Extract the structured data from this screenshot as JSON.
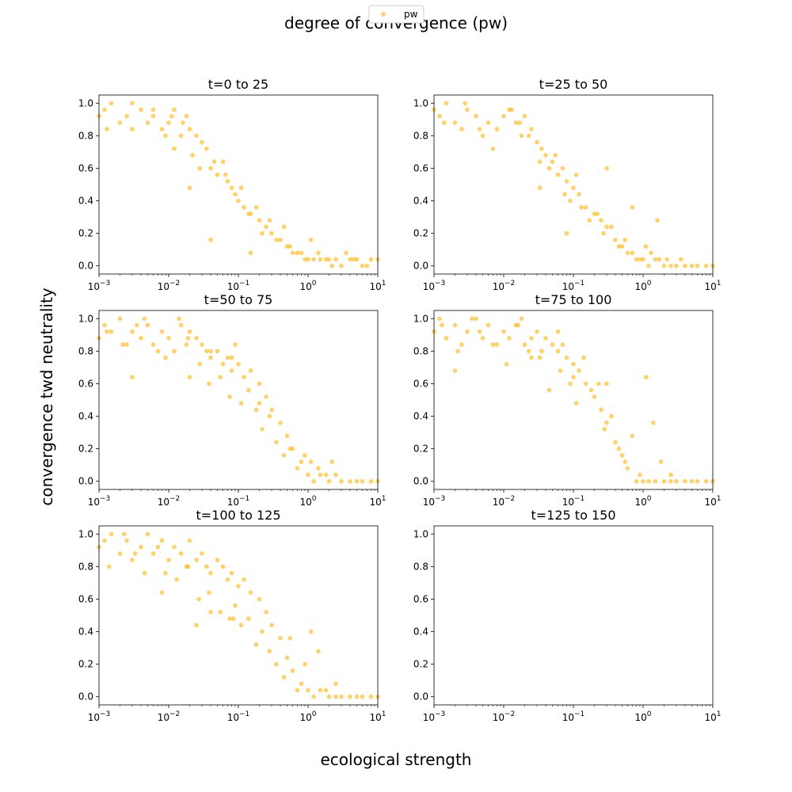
{
  "figure": {
    "title": "degree of convergence (pw)",
    "xlabel": "ecological strength",
    "ylabel": "convergence twd neutrality",
    "legend": {
      "label": "pw",
      "position": "top-center"
    },
    "series_color": "#FFB300"
  },
  "chart_data": [
    {
      "type": "scatter",
      "title": "t=0 to 25",
      "x_scale": "log",
      "xlim": [
        0.001,
        10
      ],
      "ylim": [
        -0.05,
        1.05
      ],
      "x_ticks": [
        {
          "base": "10",
          "exp": "−3"
        },
        {
          "base": "10",
          "exp": "−2"
        },
        {
          "base": "10",
          "exp": "−1"
        },
        {
          "base": "10",
          "exp": "0"
        },
        {
          "base": "10",
          "exp": "1"
        }
      ],
      "y_ticks": [
        "0.0",
        "0.2",
        "0.4",
        "0.6",
        "0.8",
        "1.0"
      ],
      "series": [
        {
          "name": "pw",
          "x": [
            0.001,
            0.0012,
            0.0015,
            0.002,
            0.0025,
            0.003,
            0.004,
            0.005,
            0.006,
            0.008,
            0.01,
            0.012,
            0.015,
            0.018,
            0.02,
            0.025,
            0.03,
            0.035,
            0.04,
            0.05,
            0.06,
            0.07,
            0.08,
            0.1,
            0.12,
            0.15,
            0.2,
            0.25,
            0.3,
            0.4,
            0.5,
            0.6,
            0.8,
            1.0,
            1.2,
            1.5,
            2.0,
            2.5,
            3.0,
            4.0,
            5.0,
            6.0,
            8.0,
            10.0,
            0.0013,
            0.003,
            0.006,
            0.009,
            0.011,
            0.016,
            0.022,
            0.028,
            0.045,
            0.065,
            0.09,
            0.11,
            0.14,
            0.18,
            0.22,
            0.28,
            0.35,
            0.45,
            0.55,
            0.7,
            0.9,
            1.1,
            1.4,
            1.8,
            2.2,
            3.5,
            4.5,
            7.0,
            0.04,
            0.15,
            0.02,
            0.012
          ],
          "y": [
            0.92,
            0.96,
            1.0,
            0.88,
            0.92,
            0.84,
            0.96,
            0.88,
            0.92,
            0.84,
            0.88,
            0.96,
            0.8,
            0.92,
            0.84,
            0.8,
            0.76,
            0.72,
            0.6,
            0.56,
            0.64,
            0.52,
            0.48,
            0.4,
            0.36,
            0.32,
            0.28,
            0.24,
            0.2,
            0.16,
            0.12,
            0.08,
            0.08,
            0.04,
            0.04,
            0.04,
            0.04,
            0.04,
            0.0,
            0.04,
            0.04,
            0.0,
            0.04,
            0.04,
            0.84,
            1.0,
            0.96,
            0.8,
            0.92,
            0.88,
            0.68,
            0.6,
            0.64,
            0.56,
            0.44,
            0.48,
            0.32,
            0.36,
            0.2,
            0.28,
            0.16,
            0.24,
            0.12,
            0.08,
            0.04,
            0.16,
            0.08,
            0.04,
            0.0,
            0.08,
            0.04,
            0.0,
            0.16,
            0.08,
            0.48,
            0.72
          ]
        }
      ]
    },
    {
      "type": "scatter",
      "title": "t=25 to 50",
      "x_scale": "log",
      "xlim": [
        0.001,
        10
      ],
      "ylim": [
        -0.05,
        1.05
      ],
      "x_ticks": [
        {
          "base": "10",
          "exp": "−3"
        },
        {
          "base": "10",
          "exp": "−2"
        },
        {
          "base": "10",
          "exp": "−1"
        },
        {
          "base": "10",
          "exp": "0"
        },
        {
          "base": "10",
          "exp": "1"
        }
      ],
      "y_ticks": [
        "0.0",
        "0.2",
        "0.4",
        "0.6",
        "0.8",
        "1.0"
      ],
      "series": [
        {
          "name": "pw",
          "x": [
            0.001,
            0.0012,
            0.0015,
            0.002,
            0.0025,
            0.003,
            0.004,
            0.005,
            0.006,
            0.008,
            0.01,
            0.012,
            0.015,
            0.018,
            0.02,
            0.025,
            0.03,
            0.035,
            0.04,
            0.05,
            0.06,
            0.07,
            0.08,
            0.1,
            0.12,
            0.15,
            0.2,
            0.25,
            0.3,
            0.4,
            0.5,
            0.6,
            0.8,
            1.0,
            1.2,
            1.5,
            2.0,
            2.5,
            3.0,
            4.0,
            5.0,
            6.0,
            8.0,
            10.0,
            0.0014,
            0.0028,
            0.0045,
            0.007,
            0.013,
            0.017,
            0.023,
            0.033,
            0.045,
            0.055,
            0.075,
            0.09,
            0.11,
            0.13,
            0.17,
            0.22,
            0.27,
            0.35,
            0.45,
            0.55,
            0.7,
            0.9,
            1.1,
            1.3,
            1.7,
            2.2,
            3.5,
            0.033,
            0.08,
            0.3,
            0.7,
            1.6
          ],
          "y": [
            0.96,
            0.92,
            1.0,
            0.88,
            0.84,
            0.96,
            0.92,
            0.8,
            0.88,
            0.84,
            0.92,
            0.96,
            0.88,
            0.8,
            0.92,
            0.84,
            0.76,
            0.72,
            0.68,
            0.64,
            0.56,
            0.6,
            0.52,
            0.48,
            0.44,
            0.36,
            0.32,
            0.28,
            0.24,
            0.16,
            0.12,
            0.08,
            0.04,
            0.04,
            0.0,
            0.04,
            0.0,
            0.0,
            0.0,
            0.0,
            0.0,
            0.0,
            0.0,
            0.0,
            0.88,
            1.0,
            0.84,
            0.72,
            0.96,
            0.88,
            0.8,
            0.64,
            0.6,
            0.68,
            0.44,
            0.4,
            0.56,
            0.36,
            0.28,
            0.32,
            0.2,
            0.24,
            0.12,
            0.16,
            0.08,
            0.04,
            0.12,
            0.08,
            0.04,
            0.04,
            0.04,
            0.48,
            0.2,
            0.6,
            0.36,
            0.28
          ]
        }
      ]
    },
    {
      "type": "scatter",
      "title": "t=50 to 75",
      "x_scale": "log",
      "xlim": [
        0.001,
        10
      ],
      "ylim": [
        -0.05,
        1.05
      ],
      "x_ticks": [
        {
          "base": "10",
          "exp": "−3"
        },
        {
          "base": "10",
          "exp": "−2"
        },
        {
          "base": "10",
          "exp": "−1"
        },
        {
          "base": "10",
          "exp": "0"
        },
        {
          "base": "10",
          "exp": "1"
        }
      ],
      "y_ticks": [
        "0.0",
        "0.2",
        "0.4",
        "0.6",
        "0.8",
        "1.0"
      ],
      "series": [
        {
          "name": "pw",
          "x": [
            0.001,
            0.0012,
            0.0015,
            0.002,
            0.0025,
            0.003,
            0.004,
            0.005,
            0.006,
            0.008,
            0.01,
            0.012,
            0.015,
            0.018,
            0.02,
            0.025,
            0.03,
            0.035,
            0.04,
            0.05,
            0.06,
            0.07,
            0.08,
            0.1,
            0.12,
            0.15,
            0.2,
            0.25,
            0.3,
            0.4,
            0.5,
            0.6,
            0.8,
            1.0,
            1.2,
            1.5,
            2.0,
            2.5,
            3.0,
            4.0,
            5.0,
            6.0,
            8.0,
            10.0,
            0.0013,
            0.0022,
            0.0035,
            0.0045,
            0.007,
            0.009,
            0.014,
            0.019,
            0.028,
            0.038,
            0.055,
            0.075,
            0.09,
            0.11,
            0.14,
            0.18,
            0.22,
            0.28,
            0.35,
            0.45,
            0.55,
            0.7,
            0.9,
            1.1,
            1.4,
            1.8,
            2.2,
            0.003,
            0.04,
            0.02,
            0.08,
            0.2
          ],
          "y": [
            0.88,
            0.96,
            0.92,
            1.0,
            0.84,
            0.92,
            0.88,
            0.96,
            0.84,
            0.92,
            0.88,
            0.8,
            0.96,
            0.84,
            0.92,
            0.88,
            0.84,
            0.8,
            0.76,
            0.8,
            0.72,
            0.76,
            0.68,
            0.72,
            0.64,
            0.68,
            0.6,
            0.52,
            0.44,
            0.36,
            0.28,
            0.2,
            0.12,
            0.04,
            0.0,
            0.04,
            0.0,
            0.04,
            0.0,
            0.0,
            0.0,
            0.0,
            0.0,
            0.0,
            0.92,
            0.84,
            0.96,
            1.0,
            0.8,
            0.76,
            1.0,
            0.88,
            0.72,
            0.6,
            0.64,
            0.52,
            0.84,
            0.48,
            0.56,
            0.44,
            0.32,
            0.4,
            0.24,
            0.16,
            0.2,
            0.08,
            0.16,
            0.12,
            0.08,
            0.04,
            0.12,
            0.64,
            0.8,
            0.64,
            0.76,
            0.48
          ]
        }
      ]
    },
    {
      "type": "scatter",
      "title": "t=75 to 100",
      "x_scale": "log",
      "xlim": [
        0.001,
        10
      ],
      "ylim": [
        -0.05,
        1.05
      ],
      "x_ticks": [
        {
          "base": "10",
          "exp": "−3"
        },
        {
          "base": "10",
          "exp": "−2"
        },
        {
          "base": "10",
          "exp": "−1"
        },
        {
          "base": "10",
          "exp": "0"
        },
        {
          "base": "10",
          "exp": "1"
        }
      ],
      "y_ticks": [
        "0.0",
        "0.2",
        "0.4",
        "0.6",
        "0.8",
        "1.0"
      ],
      "series": [
        {
          "name": "pw",
          "x": [
            0.001,
            0.0012,
            0.0015,
            0.002,
            0.0025,
            0.003,
            0.004,
            0.005,
            0.006,
            0.008,
            0.01,
            0.012,
            0.015,
            0.018,
            0.02,
            0.025,
            0.03,
            0.035,
            0.04,
            0.05,
            0.06,
            0.07,
            0.08,
            0.1,
            0.12,
            0.15,
            0.2,
            0.25,
            0.3,
            0.4,
            0.5,
            0.6,
            0.8,
            1.0,
            1.2,
            1.5,
            2.0,
            2.5,
            3.0,
            4.0,
            5.0,
            6.0,
            8.0,
            10.0,
            0.0013,
            0.0022,
            0.0035,
            0.0045,
            0.007,
            0.011,
            0.016,
            0.023,
            0.033,
            0.045,
            0.065,
            0.09,
            0.11,
            0.14,
            0.18,
            0.23,
            0.28,
            0.35,
            0.45,
            0.55,
            0.7,
            0.9,
            1.1,
            1.4,
            1.8,
            2.5,
            0.002,
            0.025,
            0.06,
            0.1,
            0.3
          ],
          "y": [
            0.92,
            1.0,
            0.88,
            0.96,
            0.84,
            0.92,
            1.0,
            0.88,
            0.96,
            0.84,
            0.92,
            0.88,
            0.96,
            1.0,
            0.84,
            0.88,
            0.92,
            0.8,
            0.88,
            0.84,
            0.8,
            0.84,
            0.76,
            0.72,
            0.68,
            0.6,
            0.52,
            0.44,
            0.36,
            0.24,
            0.16,
            0.08,
            0.0,
            0.0,
            0.0,
            0.0,
            0.0,
            0.0,
            0.0,
            0.0,
            0.0,
            0.0,
            0.0,
            0.0,
            0.96,
            0.8,
            1.0,
            0.92,
            0.84,
            0.72,
            0.96,
            0.8,
            0.76,
            0.56,
            0.68,
            0.6,
            0.48,
            0.76,
            0.56,
            0.6,
            0.32,
            0.4,
            0.2,
            0.12,
            0.28,
            0.04,
            0.64,
            0.36,
            0.12,
            0.04,
            0.68,
            0.76,
            0.92,
            0.64,
            0.6
          ]
        }
      ]
    },
    {
      "type": "scatter",
      "title": "t=100 to 125",
      "x_scale": "log",
      "xlim": [
        0.001,
        10
      ],
      "ylim": [
        -0.05,
        1.05
      ],
      "x_ticks": [
        {
          "base": "10",
          "exp": "−3"
        },
        {
          "base": "10",
          "exp": "−2"
        },
        {
          "base": "10",
          "exp": "−1"
        },
        {
          "base": "10",
          "exp": "0"
        },
        {
          "base": "10",
          "exp": "1"
        }
      ],
      "y_ticks": [
        "0.0",
        "0.2",
        "0.4",
        "0.6",
        "0.8",
        "1.0"
      ],
      "series": [
        {
          "name": "pw",
          "x": [
            0.001,
            0.0012,
            0.0015,
            0.002,
            0.0025,
            0.003,
            0.004,
            0.005,
            0.006,
            0.008,
            0.01,
            0.012,
            0.015,
            0.018,
            0.02,
            0.025,
            0.03,
            0.035,
            0.04,
            0.05,
            0.06,
            0.07,
            0.08,
            0.1,
            0.12,
            0.15,
            0.2,
            0.25,
            0.3,
            0.4,
            0.5,
            0.6,
            0.8,
            1.0,
            1.2,
            1.5,
            2.0,
            2.5,
            3.0,
            4.0,
            5.0,
            6.0,
            8.0,
            10.0,
            0.0014,
            0.0023,
            0.0033,
            0.0045,
            0.007,
            0.009,
            0.013,
            0.019,
            0.027,
            0.038,
            0.055,
            0.075,
            0.09,
            0.11,
            0.14,
            0.18,
            0.22,
            0.28,
            0.35,
            0.45,
            0.55,
            0.7,
            0.9,
            1.1,
            1.4,
            1.8,
            2.5,
            0.008,
            0.025,
            0.04,
            0.085
          ],
          "y": [
            0.92,
            0.96,
            1.0,
            0.88,
            0.96,
            0.84,
            0.92,
            1.0,
            0.88,
            0.96,
            0.84,
            0.92,
            0.88,
            0.8,
            0.96,
            0.84,
            0.88,
            0.8,
            0.76,
            0.84,
            0.8,
            0.72,
            0.76,
            0.68,
            0.72,
            0.64,
            0.6,
            0.52,
            0.44,
            0.36,
            0.24,
            0.16,
            0.08,
            0.04,
            0.0,
            0.04,
            0.0,
            0.0,
            0.0,
            0.0,
            0.0,
            0.0,
            0.0,
            0.0,
            0.8,
            1.0,
            0.88,
            0.76,
            0.92,
            0.76,
            0.72,
            0.8,
            0.6,
            0.64,
            0.52,
            0.48,
            0.56,
            0.44,
            0.48,
            0.32,
            0.4,
            0.28,
            0.2,
            0.12,
            0.36,
            0.04,
            0.2,
            0.4,
            0.28,
            0.04,
            0.08,
            0.64,
            0.44,
            0.52,
            0.48
          ]
        }
      ]
    },
    {
      "type": "scatter",
      "title": "t=125 to 150",
      "x_scale": "log",
      "xlim": [
        0.001,
        10
      ],
      "ylim": [
        -0.05,
        1.05
      ],
      "x_ticks": [
        {
          "base": "10",
          "exp": "−3"
        },
        {
          "base": "10",
          "exp": "−2"
        },
        {
          "base": "10",
          "exp": "−1"
        },
        {
          "base": "10",
          "exp": "0"
        },
        {
          "base": "10",
          "exp": "1"
        }
      ],
      "y_ticks": [
        "0.0",
        "0.2",
        "0.4",
        "0.6",
        "0.8",
        "1.0"
      ],
      "series": []
    }
  ]
}
